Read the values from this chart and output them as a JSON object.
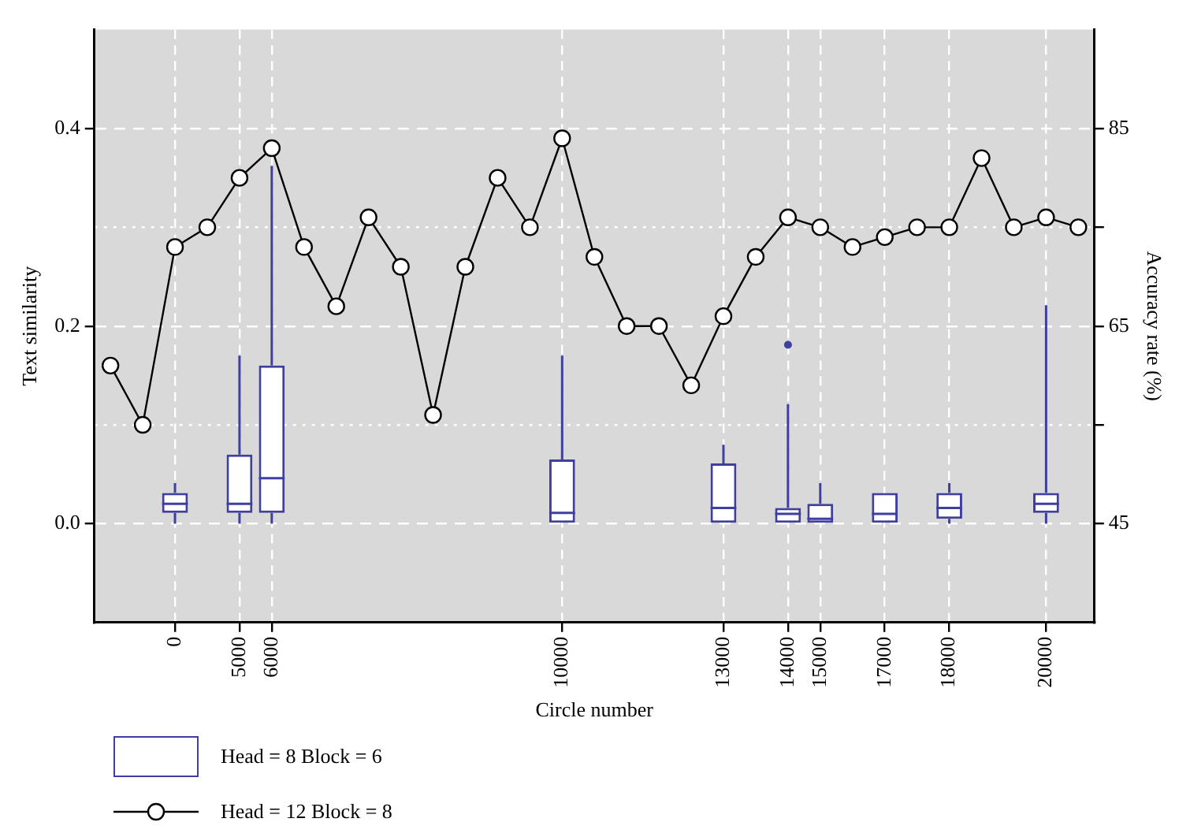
{
  "chart_data": {
    "type": "box",
    "xlabel": "Circle number",
    "ylabel": "Text similarity",
    "y2label": "Accuracy rate (%)",
    "categories": [
      null,
      null,
      "0",
      null,
      "5000",
      "6000",
      null,
      null,
      null,
      null,
      null,
      null,
      null,
      null,
      "10000",
      null,
      null,
      null,
      null,
      "13000",
      null,
      "14000",
      "15000",
      null,
      "17000",
      null,
      "18000",
      null,
      null,
      "20000",
      null
    ],
    "series": [
      {
        "name": "Head = 8 Block = 6",
        "color": "#3f3fa0",
        "boxes": [
          null,
          null,
          {
            "low": 0,
            "q1": 0.011,
            "median": 0.02,
            "q3": 0.031,
            "high": 0.041
          },
          null,
          {
            "low": 0,
            "q1": 0.011,
            "median": 0.02,
            "q3": 0.07,
            "high": 0.17
          },
          {
            "low": 0,
            "q1": 0.011,
            "median": 0.046,
            "q3": 0.16,
            "high": 0.362
          },
          null,
          null,
          null,
          null,
          null,
          null,
          null,
          null,
          {
            "low": 0,
            "q1": 0,
            "median": 0.011,
            "q3": 0.065,
            "high": 0.17
          },
          null,
          null,
          null,
          null,
          {
            "low": 0,
            "q1": 0,
            "median": 0.016,
            "q3": 0.061,
            "high": 0.08
          },
          null,
          {
            "low": 0,
            "q1": 0,
            "median": 0.01,
            "q3": 0.016,
            "high": 0.121,
            "outliers": [
              0.181
            ]
          },
          {
            "low": 0,
            "q1": 0,
            "median": 0.005,
            "q3": 0.02,
            "high": 0.041
          },
          null,
          {
            "low": 0,
            "q1": 0,
            "median": 0.01,
            "q3": 0.031,
            "high": 0.031
          },
          null,
          {
            "low": 0,
            "q1": 0.005,
            "median": 0.016,
            "q3": 0.031,
            "high": 0.041
          },
          null,
          null,
          {
            "low": 0,
            "q1": 0.011,
            "median": 0.02,
            "q3": 0.031,
            "high": 0.221
          },
          null
        ]
      },
      {
        "type": "line",
        "axis": "y2",
        "name": "Head = 12 Block = 8",
        "color": "#000000",
        "marker": "circle",
        "line_style": "solid",
        "values": [
          61,
          55,
          73,
          75,
          80,
          83,
          73,
          67,
          76,
          71,
          56,
          71,
          80,
          75,
          84,
          72,
          65,
          65,
          59,
          66,
          72,
          76,
          75,
          73,
          74,
          75,
          75,
          82,
          75,
          76,
          75
        ]
      }
    ],
    "ylim": [
      -0.1,
      0.5
    ],
    "yticks": [
      {
        "value": 0,
        "label": "0.0"
      },
      {
        "value": 0.2,
        "label": "0.2"
      },
      {
        "value": 0.4,
        "label": "0.4"
      }
    ],
    "y2lim": [
      35,
      95
    ],
    "y2ticks": [
      45,
      {
        "value": 55,
        "label": null
      },
      65,
      {
        "value": 75,
        "label": null
      },
      85
    ],
    "grid": true,
    "legend": "bottom"
  }
}
